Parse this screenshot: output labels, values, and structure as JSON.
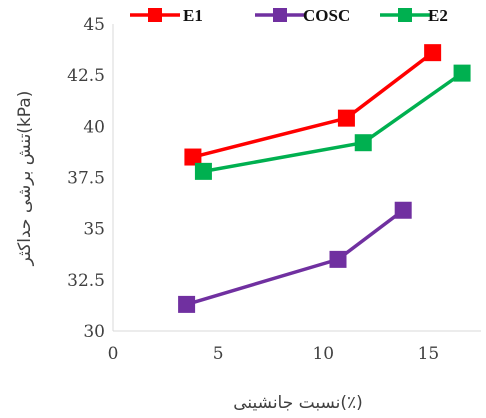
{
  "chart_data": {
    "type": "line",
    "title": "",
    "xlabel": "نسبت جانشینی(٪)",
    "ylabel": "تنش برشی حداکثر(kPa)",
    "xlim": [
      0,
      17.5
    ],
    "ylim": [
      30,
      45
    ],
    "xticks": [
      0,
      5,
      10,
      15
    ],
    "yticks": [
      30,
      32.5,
      35,
      37.5,
      40,
      42.5,
      45
    ],
    "xtick_labels": [
      "0",
      "5",
      "10",
      "15"
    ],
    "ytick_labels": [
      "30",
      "32.5",
      "35",
      "37.5",
      "40",
      "42.5",
      "45"
    ],
    "grid": false,
    "legend_position": "top",
    "series": [
      {
        "name": "E1",
        "color": "#ff0000",
        "x": [
          3.8,
          11.1,
          15.2
        ],
        "y": [
          38.5,
          40.4,
          43.6
        ]
      },
      {
        "name": "COSC",
        "color": "#7030a0",
        "x": [
          3.5,
          10.7,
          13.8
        ],
        "y": [
          31.3,
          33.5,
          35.9
        ]
      },
      {
        "name": "E2",
        "color": "#00b050",
        "x": [
          4.3,
          11.9,
          16.6
        ],
        "y": [
          37.8,
          39.2,
          42.6
        ]
      }
    ]
  }
}
